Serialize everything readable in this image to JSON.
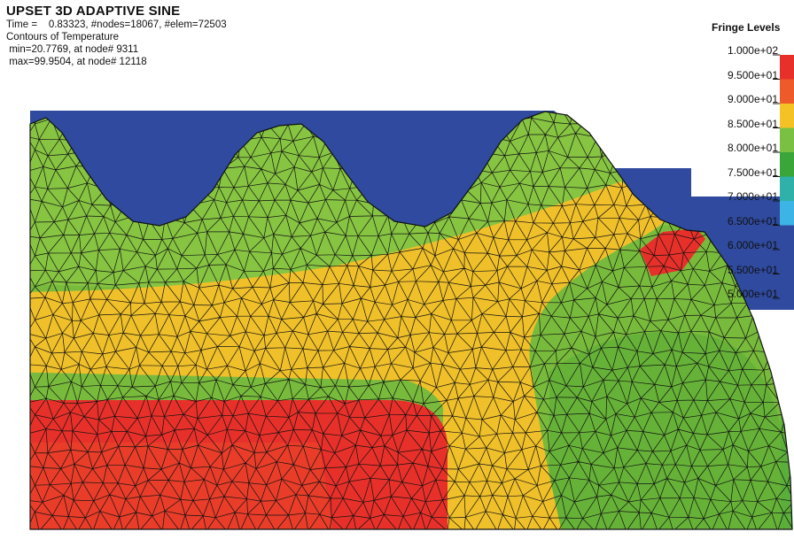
{
  "header": {
    "title": "UPSET 3D ADAPTIVE SINE",
    "line1": "Time =    0.83323, #nodes=18067, #elem=72503",
    "line2": "Contours of Temperature",
    "line3": " min=20.7769, at node# 9311",
    "line4": " max=99.9504, at node# 12118"
  },
  "legend": {
    "title": "Fringe Levels",
    "levels": [
      {
        "label": "1.000e+02",
        "color": "#ffffff"
      },
      {
        "label": "9.500e+01",
        "color": "#e8302a"
      },
      {
        "label": "9.000e+01",
        "color": "#ee5a2a"
      },
      {
        "label": "8.500e+01",
        "color": "#f5c226"
      },
      {
        "label": "8.000e+01",
        "color": "#7ac143"
      },
      {
        "label": "7.500e+01",
        "color": "#3aa63a"
      },
      {
        "label": "7.000e+01",
        "color": "#2fb0a8"
      },
      {
        "label": "6.500e+01",
        "color": "#3cb4e6"
      },
      {
        "label": "6.000e+01",
        "color": "#2f4a9e"
      },
      {
        "label": "5.500e+01",
        "color": "#2f4a9e"
      },
      {
        "label": "5.000e+01",
        "color": "#2f4a9e"
      }
    ]
  },
  "colors": {
    "die_blue": "#2f4a9e",
    "mesh_line": "#111111",
    "hot_red": "#e8302a",
    "warm_orange": "#f0c02a",
    "mid_green": "#78bb3c",
    "cool_green": "#5aae3a"
  }
}
